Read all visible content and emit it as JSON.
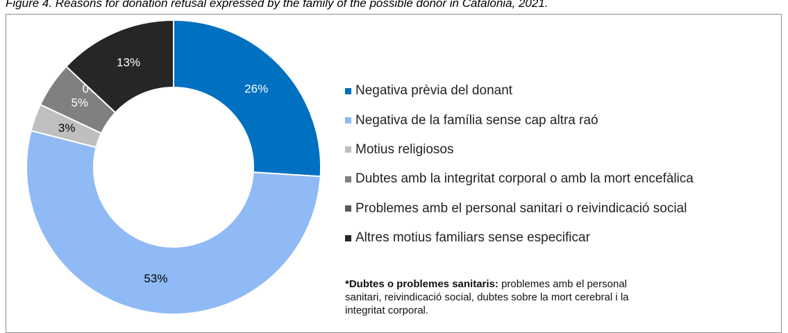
{
  "chart_data": {
    "type": "donut",
    "title": "Figure 4. Reasons for donation refusal expressed by the family of the possible donor in Catalonia, 2021.",
    "categories": [
      "Negativa prèvia del donant",
      "Negativa de la família sense cap altra raó",
      "Motius religiosos",
      "Dubtes amb la integritat corporal o amb la mort encefàlica",
      "Problemes amb el personal sanitari o reivindicació social",
      "Altres motius familiars sense especificar"
    ],
    "values": [
      26,
      53,
      3,
      5,
      0,
      13
    ],
    "value_labels": [
      "26%",
      "53%",
      "3%",
      "5%",
      "0%",
      "13%"
    ],
    "colors": [
      "#0070c0",
      "#8fbaf5",
      "#bfbfbf",
      "#808080",
      "#595959",
      "#262626"
    ],
    "legend": "right",
    "note": {
      "label": "*Dubtes o problemes sanitaris:",
      "text": " problemes amb el personal sanitari, reivindicació social, dubtes sobre la mort cerebral i la integritat corporal."
    }
  }
}
